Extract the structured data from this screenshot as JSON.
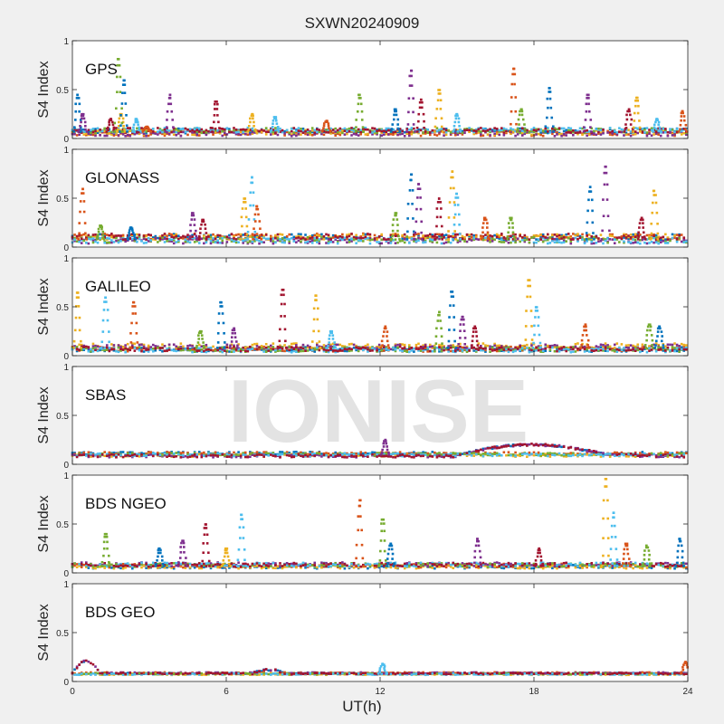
{
  "figure": {
    "title": "SXWN20240909",
    "xlabel": "UT(h)",
    "watermark": "IONISE"
  },
  "chart_data": [
    {
      "type": "scatter",
      "title": "GPS",
      "ylabel": "S4 Index",
      "xlim": [
        0,
        24
      ],
      "ylim": [
        0,
        1
      ],
      "yticks": [
        0,
        0.5,
        1
      ],
      "ytick_labels": [
        "0",
        "0.5",
        "1"
      ],
      "xticks": [
        0,
        6,
        12,
        18,
        24
      ],
      "xtick_labels": [
        "0",
        "6",
        "12",
        "18",
        "24"
      ],
      "baseline": 0.07,
      "noise": 0.05,
      "peaks": [
        [
          0.3,
          0.45
        ],
        [
          0.5,
          0.25
        ],
        [
          1.6,
          0.2
        ],
        [
          2.0,
          0.25
        ],
        [
          2.6,
          0.2
        ],
        [
          3.0,
          0.12
        ],
        [
          1.9,
          0.82
        ],
        [
          2.1,
          0.6
        ],
        [
          3.9,
          0.45
        ],
        [
          5.7,
          0.38
        ],
        [
          7.1,
          0.25
        ],
        [
          8.0,
          0.22
        ],
        [
          10.0,
          0.18
        ],
        [
          11.3,
          0.45
        ],
        [
          12.7,
          0.3
        ],
        [
          13.3,
          0.7
        ],
        [
          13.7,
          0.4
        ],
        [
          14.4,
          0.5
        ],
        [
          15.1,
          0.25
        ],
        [
          17.3,
          0.72
        ],
        [
          17.6,
          0.3
        ],
        [
          18.7,
          0.52
        ],
        [
          20.2,
          0.45
        ],
        [
          21.8,
          0.3
        ],
        [
          22.1,
          0.42
        ],
        [
          22.9,
          0.2
        ],
        [
          23.9,
          0.28
        ]
      ]
    },
    {
      "type": "scatter",
      "title": "GLONASS",
      "ylabel": "S4 Index",
      "xlim": [
        0,
        24
      ],
      "ylim": [
        0,
        1
      ],
      "yticks": [
        0,
        0.5,
        1
      ],
      "ytick_labels": [
        "0",
        "0.5",
        "1"
      ],
      "xticks": [
        0,
        6,
        12,
        18,
        24
      ],
      "xtick_labels": [
        "0",
        "6",
        "12",
        "18",
        "24"
      ],
      "baseline": 0.08,
      "noise": 0.06,
      "peaks": [
        [
          0.5,
          0.6
        ],
        [
          1.2,
          0.22
        ],
        [
          2.4,
          0.2
        ],
        [
          4.8,
          0.35
        ],
        [
          5.2,
          0.28
        ],
        [
          6.8,
          0.5
        ],
        [
          7.1,
          0.72
        ],
        [
          7.3,
          0.42
        ],
        [
          12.7,
          0.35
        ],
        [
          13.3,
          0.75
        ],
        [
          13.6,
          0.65
        ],
        [
          14.4,
          0.5
        ],
        [
          14.9,
          0.78
        ],
        [
          15.1,
          0.55
        ],
        [
          16.2,
          0.3
        ],
        [
          17.2,
          0.3
        ],
        [
          20.3,
          0.62
        ],
        [
          20.9,
          0.83
        ],
        [
          22.3,
          0.3
        ],
        [
          22.8,
          0.58
        ]
      ]
    },
    {
      "type": "scatter",
      "title": "GALILEO",
      "ylabel": "S4 Index",
      "xlim": [
        0,
        24
      ],
      "ylim": [
        0,
        1
      ],
      "yticks": [
        0,
        0.5,
        1
      ],
      "ytick_labels": [
        "0",
        "0.5",
        "1"
      ],
      "xticks": [
        0,
        6,
        12,
        18,
        24
      ],
      "xtick_labels": [
        "0",
        "6",
        "12",
        "18",
        "24"
      ],
      "baseline": 0.08,
      "noise": 0.05,
      "peaks": [
        [
          0.3,
          0.65
        ],
        [
          1.4,
          0.6
        ],
        [
          2.5,
          0.55
        ],
        [
          5.1,
          0.25
        ],
        [
          5.9,
          0.55
        ],
        [
          6.4,
          0.28
        ],
        [
          8.3,
          0.68
        ],
        [
          9.6,
          0.62
        ],
        [
          10.2,
          0.25
        ],
        [
          12.3,
          0.3
        ],
        [
          14.4,
          0.45
        ],
        [
          14.9,
          0.66
        ],
        [
          15.3,
          0.4
        ],
        [
          15.8,
          0.3
        ],
        [
          17.9,
          0.78
        ],
        [
          18.2,
          0.5
        ],
        [
          20.1,
          0.32
        ],
        [
          22.6,
          0.32
        ],
        [
          23.0,
          0.3
        ]
      ]
    },
    {
      "type": "scatter",
      "title": "SBAS",
      "ylabel": "S4 Index",
      "xlim": [
        0,
        24
      ],
      "ylim": [
        0,
        1
      ],
      "yticks": [
        0,
        0.5,
        1
      ],
      "ytick_labels": [
        "0",
        "0.5",
        "1"
      ],
      "xticks": [
        0,
        6,
        12,
        18,
        24
      ],
      "xtick_labels": [
        "0",
        "6",
        "12",
        "18",
        "24"
      ],
      "baseline": 0.1,
      "noise": 0.03,
      "peaks": [
        [
          12.3,
          0.25
        ]
      ],
      "bands": [
        {
          "from": 15,
          "to": 22,
          "level": 0.2
        }
      ]
    },
    {
      "type": "scatter",
      "title": "BDS NGEO",
      "ylabel": "S4 Index",
      "xlim": [
        0,
        24
      ],
      "ylim": [
        0,
        1
      ],
      "yticks": [
        0,
        0.5,
        1
      ],
      "ytick_labels": [
        "0",
        "0.5",
        "1"
      ],
      "xticks": [
        0,
        6,
        12,
        18,
        24
      ],
      "xtick_labels": [
        "0",
        "6",
        "12",
        "18",
        "24"
      ],
      "baseline": 0.07,
      "noise": 0.04,
      "peaks": [
        [
          1.4,
          0.4
        ],
        [
          3.5,
          0.25
        ],
        [
          4.4,
          0.33
        ],
        [
          5.3,
          0.5
        ],
        [
          6.1,
          0.25
        ],
        [
          6.7,
          0.6
        ],
        [
          11.3,
          0.75
        ],
        [
          12.2,
          0.55
        ],
        [
          12.5,
          0.3
        ],
        [
          15.9,
          0.35
        ],
        [
          18.3,
          0.25
        ],
        [
          20.9,
          0.97
        ],
        [
          21.2,
          0.62
        ],
        [
          21.7,
          0.3
        ],
        [
          22.5,
          0.28
        ],
        [
          23.8,
          0.35
        ]
      ]
    },
    {
      "type": "scatter",
      "title": "BDS GEO",
      "ylabel": "S4 Index",
      "xlim": [
        0,
        24
      ],
      "ylim": [
        0,
        1
      ],
      "yticks": [
        0,
        0.5,
        1
      ],
      "ytick_labels": [
        "0",
        "0.5",
        "1"
      ],
      "xticks": [
        0,
        6,
        12,
        18,
        24
      ],
      "xtick_labels": [
        "0",
        "6",
        "12",
        "18",
        "24"
      ],
      "baseline": 0.08,
      "noise": 0.015,
      "peaks": [
        [
          12.2,
          0.18
        ],
        [
          24,
          0.2
        ]
      ],
      "bands": [
        {
          "from": 0,
          "to": 1.3,
          "level": 0.21
        },
        {
          "from": 7.0,
          "to": 8.6,
          "level": 0.12
        }
      ]
    }
  ],
  "colors": {
    "series": [
      "#0072bd",
      "#d95319",
      "#edb120",
      "#7e2f8e",
      "#77ac30",
      "#4dbeee",
      "#a2142f"
    ],
    "axes_bg": "#ffffff",
    "figure_bg": "#f0f0f0",
    "axis_line": "#262626",
    "watermark": "#d9d9d9"
  }
}
